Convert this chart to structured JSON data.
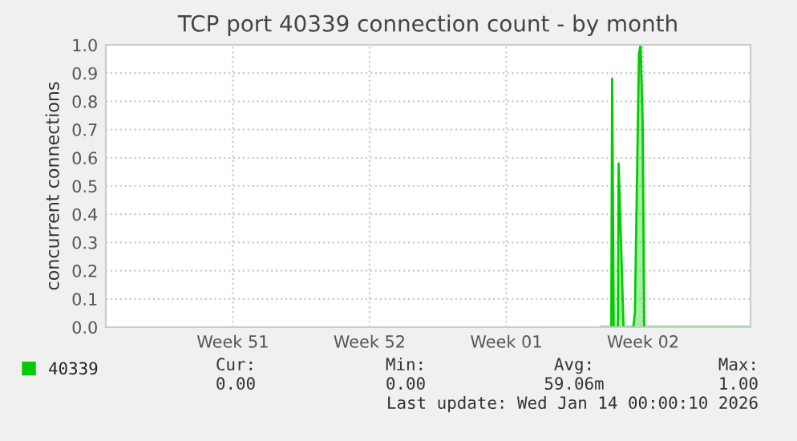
{
  "chart_data": {
    "type": "area",
    "title": "TCP port 40339 connection count - by month",
    "ylabel": "concurrent connections",
    "x": [
      "2026-01-06T08:00",
      "2026-01-06T21:00",
      "2026-01-06T22:00",
      "2026-01-07T00:00",
      "2026-01-07T05:00",
      "2026-01-07T06:00",
      "2026-01-07T12:00",
      "2026-01-08T00:00",
      "2026-01-08T02:00",
      "2026-01-08T07:00",
      "2026-01-08T09:00",
      "2026-01-08T11:30",
      "2026-01-08T13:30",
      "2026-01-14T00:00"
    ],
    "series": [
      {
        "name": "40339",
        "color": "#00cc00",
        "values": [
          0,
          0,
          0.88,
          0,
          0,
          0.58,
          0,
          0,
          0.05,
          0.97,
          1.0,
          0.72,
          0,
          0
        ]
      }
    ],
    "xlim": [
      "2025-12-12T00:00",
      "2026-01-14T00:00"
    ],
    "xticks": [
      {
        "value": "2025-12-18T12:00",
        "label": "Week 51"
      },
      {
        "value": "2025-12-25T12:00",
        "label": "Week 52"
      },
      {
        "value": "2026-01-01T12:00",
        "label": "Week 01"
      },
      {
        "value": "2026-01-08T12:00",
        "label": "Week 02"
      }
    ],
    "ylim": [
      0,
      1.0
    ],
    "yticks": [
      {
        "value": 0,
        "label": "0.0"
      },
      0.1,
      0.2,
      0.3,
      0.4,
      0.5,
      0.6,
      0.7,
      0.8,
      0.9,
      {
        "value": 1,
        "label": "1.0"
      }
    ],
    "grid": true,
    "legend": "bottom left",
    "annotations": [
      "Cur:",
      "0.00",
      "Min:",
      "0.00",
      "Avg:",
      "59.06m",
      "Max:",
      "1.00",
      "Last update: Wed Jan 14 00:00:10 2026"
    ]
  }
}
